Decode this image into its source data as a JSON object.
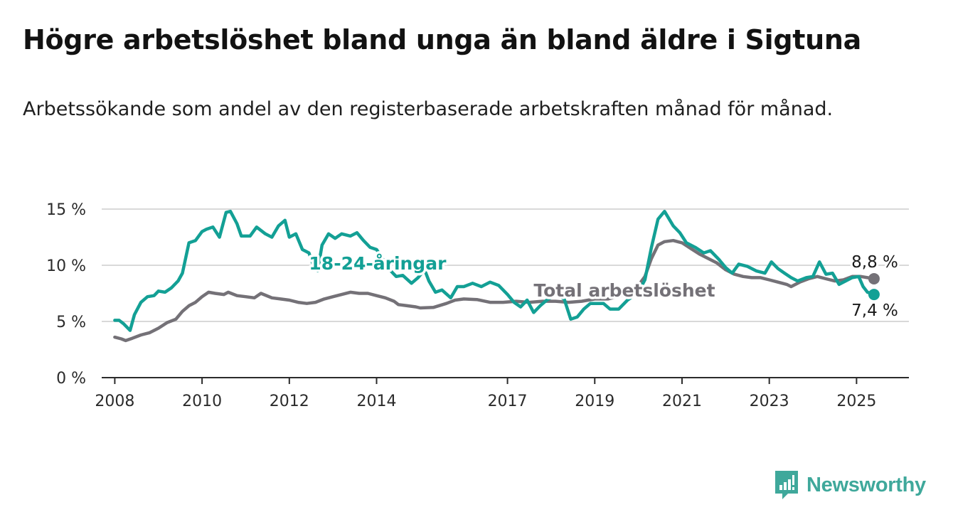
{
  "title": "Högre arbetslöshet bland unga än bland äldre i Sigtuna",
  "subtitle": "Arbetssökande som andel av den registerbaserade arbetskraften månad för månad.",
  "brand": {
    "name": "Newsworthy"
  },
  "colors": {
    "youth": "#13a095",
    "total": "#747177",
    "grid": "#d9d9d9",
    "axis": "#2b2b2b"
  },
  "chart_data": {
    "type": "line",
    "xlim": [
      2007.7,
      2026.2
    ],
    "ylim": [
      0,
      15
    ],
    "x_ticks": [
      {
        "value": 2008,
        "label": "2008"
      },
      {
        "value": 2010,
        "label": "2010"
      },
      {
        "value": 2012,
        "label": "2012"
      },
      {
        "value": 2014,
        "label": "2014"
      },
      {
        "value": 2017,
        "label": "2017"
      },
      {
        "value": 2019,
        "label": "2019"
      },
      {
        "value": 2021,
        "label": "2021"
      },
      {
        "value": 2023,
        "label": "2023"
      },
      {
        "value": 2025,
        "label": "2025"
      }
    ],
    "y_ticks": [
      {
        "value": 0,
        "label": "0 %"
      },
      {
        "value": 5,
        "label": "5 %"
      },
      {
        "value": 10,
        "label": "10 %"
      },
      {
        "value": 15,
        "label": "15 %"
      }
    ],
    "grid": true,
    "series": [
      {
        "name": "Total arbetslöshet",
        "color": "#747177",
        "end_label": "8,8 %",
        "points": [
          [
            2008.0,
            3.6
          ],
          [
            2008.15,
            3.45
          ],
          [
            2008.25,
            3.3
          ],
          [
            2008.4,
            3.5
          ],
          [
            2008.6,
            3.8
          ],
          [
            2008.8,
            4.0
          ],
          [
            2009.0,
            4.4
          ],
          [
            2009.2,
            4.9
          ],
          [
            2009.4,
            5.2
          ],
          [
            2009.55,
            5.9
          ],
          [
            2009.7,
            6.4
          ],
          [
            2009.85,
            6.7
          ],
          [
            2010.0,
            7.2
          ],
          [
            2010.15,
            7.6
          ],
          [
            2010.3,
            7.5
          ],
          [
            2010.5,
            7.4
          ],
          [
            2010.6,
            7.6
          ],
          [
            2010.8,
            7.3
          ],
          [
            2011.0,
            7.2
          ],
          [
            2011.2,
            7.1
          ],
          [
            2011.35,
            7.5
          ],
          [
            2011.6,
            7.1
          ],
          [
            2011.8,
            7.0
          ],
          [
            2012.0,
            6.9
          ],
          [
            2012.2,
            6.7
          ],
          [
            2012.4,
            6.6
          ],
          [
            2012.6,
            6.7
          ],
          [
            2012.8,
            7.0
          ],
          [
            2013.0,
            7.2
          ],
          [
            2013.2,
            7.4
          ],
          [
            2013.4,
            7.6
          ],
          [
            2013.6,
            7.5
          ],
          [
            2013.8,
            7.5
          ],
          [
            2014.0,
            7.3
          ],
          [
            2014.2,
            7.1
          ],
          [
            2014.4,
            6.8
          ],
          [
            2014.5,
            6.5
          ],
          [
            2014.7,
            6.4
          ],
          [
            2014.9,
            6.3
          ],
          [
            2015.0,
            6.2
          ],
          [
            2015.3,
            6.25
          ],
          [
            2015.6,
            6.6
          ],
          [
            2015.8,
            6.9
          ],
          [
            2016.0,
            7.0
          ],
          [
            2016.3,
            6.95
          ],
          [
            2016.6,
            6.7
          ],
          [
            2016.9,
            6.7
          ],
          [
            2017.2,
            6.8
          ],
          [
            2017.5,
            6.7
          ],
          [
            2017.8,
            6.8
          ],
          [
            2018.1,
            6.8
          ],
          [
            2018.4,
            6.7
          ],
          [
            2018.7,
            6.8
          ],
          [
            2019.0,
            7.0
          ],
          [
            2019.3,
            7.0
          ],
          [
            2019.6,
            7.3
          ],
          [
            2019.9,
            7.6
          ],
          [
            2020.0,
            8.2
          ],
          [
            2020.15,
            9.0
          ],
          [
            2020.3,
            10.6
          ],
          [
            2020.45,
            11.8
          ],
          [
            2020.6,
            12.1
          ],
          [
            2020.8,
            12.2
          ],
          [
            2021.0,
            12.0
          ],
          [
            2021.2,
            11.5
          ],
          [
            2021.4,
            11.0
          ],
          [
            2021.6,
            10.6
          ],
          [
            2021.8,
            10.2
          ],
          [
            2022.0,
            9.6
          ],
          [
            2022.2,
            9.2
          ],
          [
            2022.4,
            9.0
          ],
          [
            2022.6,
            8.9
          ],
          [
            2022.8,
            8.9
          ],
          [
            2023.0,
            8.7
          ],
          [
            2023.2,
            8.5
          ],
          [
            2023.4,
            8.3
          ],
          [
            2023.5,
            8.1
          ],
          [
            2023.7,
            8.5
          ],
          [
            2023.9,
            8.8
          ],
          [
            2024.1,
            9.0
          ],
          [
            2024.3,
            8.8
          ],
          [
            2024.5,
            8.6
          ],
          [
            2024.7,
            8.7
          ],
          [
            2024.9,
            9.0
          ],
          [
            2025.1,
            9.0
          ],
          [
            2025.25,
            8.9
          ],
          [
            2025.4,
            8.8
          ]
        ]
      },
      {
        "name": "18-24-åringar",
        "color": "#13a095",
        "end_label": "7,4 %",
        "points": [
          [
            2008.0,
            5.1
          ],
          [
            2008.1,
            5.1
          ],
          [
            2008.2,
            4.8
          ],
          [
            2008.35,
            4.2
          ],
          [
            2008.45,
            5.6
          ],
          [
            2008.6,
            6.7
          ],
          [
            2008.75,
            7.2
          ],
          [
            2008.9,
            7.3
          ],
          [
            2009.0,
            7.7
          ],
          [
            2009.15,
            7.6
          ],
          [
            2009.3,
            8.0
          ],
          [
            2009.45,
            8.6
          ],
          [
            2009.55,
            9.3
          ],
          [
            2009.7,
            12.0
          ],
          [
            2009.85,
            12.2
          ],
          [
            2010.0,
            13.0
          ],
          [
            2010.1,
            13.2
          ],
          [
            2010.25,
            13.4
          ],
          [
            2010.4,
            12.5
          ],
          [
            2010.55,
            14.7
          ],
          [
            2010.65,
            14.8
          ],
          [
            2010.8,
            13.7
          ],
          [
            2010.9,
            12.6
          ],
          [
            2011.1,
            12.6
          ],
          [
            2011.25,
            13.4
          ],
          [
            2011.45,
            12.8
          ],
          [
            2011.6,
            12.5
          ],
          [
            2011.75,
            13.5
          ],
          [
            2011.9,
            14.0
          ],
          [
            2012.0,
            12.5
          ],
          [
            2012.15,
            12.8
          ],
          [
            2012.3,
            11.4
          ],
          [
            2012.45,
            11.1
          ],
          [
            2012.55,
            10.0
          ],
          [
            2012.65,
            9.5
          ],
          [
            2012.75,
            11.8
          ],
          [
            2012.9,
            12.8
          ],
          [
            2013.05,
            12.4
          ],
          [
            2013.2,
            12.8
          ],
          [
            2013.4,
            12.6
          ],
          [
            2013.55,
            12.9
          ],
          [
            2013.7,
            12.2
          ],
          [
            2013.85,
            11.6
          ],
          [
            2014.0,
            11.4
          ],
          [
            2014.15,
            10.5
          ],
          [
            2014.3,
            9.6
          ],
          [
            2014.45,
            9.0
          ],
          [
            2014.6,
            9.1
          ],
          [
            2014.8,
            8.4
          ],
          [
            2014.95,
            8.9
          ],
          [
            2015.1,
            9.6
          ],
          [
            2015.2,
            8.6
          ],
          [
            2015.35,
            7.6
          ],
          [
            2015.5,
            7.8
          ],
          [
            2015.7,
            7.1
          ],
          [
            2015.85,
            8.1
          ],
          [
            2016.0,
            8.1
          ],
          [
            2016.2,
            8.4
          ],
          [
            2016.4,
            8.1
          ],
          [
            2016.6,
            8.5
          ],
          [
            2016.8,
            8.2
          ],
          [
            2017.0,
            7.4
          ],
          [
            2017.15,
            6.7
          ],
          [
            2017.3,
            6.3
          ],
          [
            2017.45,
            6.9
          ],
          [
            2017.6,
            5.8
          ],
          [
            2017.75,
            6.4
          ],
          [
            2017.9,
            6.9
          ],
          [
            2018.1,
            7.4
          ],
          [
            2018.3,
            7.0
          ],
          [
            2018.45,
            5.2
          ],
          [
            2018.6,
            5.4
          ],
          [
            2018.75,
            6.1
          ],
          [
            2018.9,
            6.6
          ],
          [
            2019.05,
            6.6
          ],
          [
            2019.2,
            6.6
          ],
          [
            2019.35,
            6.1
          ],
          [
            2019.55,
            6.1
          ],
          [
            2019.75,
            6.9
          ],
          [
            2020.0,
            7.6
          ],
          [
            2020.15,
            8.7
          ],
          [
            2020.3,
            11.6
          ],
          [
            2020.45,
            14.1
          ],
          [
            2020.6,
            14.8
          ],
          [
            2020.8,
            13.5
          ],
          [
            2020.95,
            12.9
          ],
          [
            2021.1,
            12.0
          ],
          [
            2021.3,
            11.6
          ],
          [
            2021.5,
            11.1
          ],
          [
            2021.65,
            11.3
          ],
          [
            2021.85,
            10.5
          ],
          [
            2022.0,
            9.8
          ],
          [
            2022.15,
            9.3
          ],
          [
            2022.3,
            10.1
          ],
          [
            2022.5,
            9.9
          ],
          [
            2022.7,
            9.5
          ],
          [
            2022.9,
            9.3
          ],
          [
            2023.05,
            10.3
          ],
          [
            2023.2,
            9.7
          ],
          [
            2023.35,
            9.3
          ],
          [
            2023.5,
            8.9
          ],
          [
            2023.65,
            8.6
          ],
          [
            2023.85,
            8.9
          ],
          [
            2024.0,
            9.0
          ],
          [
            2024.15,
            10.3
          ],
          [
            2024.3,
            9.2
          ],
          [
            2024.45,
            9.3
          ],
          [
            2024.6,
            8.3
          ],
          [
            2024.75,
            8.6
          ],
          [
            2024.9,
            8.9
          ],
          [
            2025.05,
            9.0
          ],
          [
            2025.15,
            8.1
          ],
          [
            2025.25,
            7.6
          ],
          [
            2025.4,
            7.4
          ]
        ]
      }
    ],
    "annotations": [
      {
        "text": "18-24-åringar",
        "series": "18-24-åringar",
        "x": 2012.45,
        "y": 10.2
      },
      {
        "text": "Total arbetslöshet",
        "series": "Total arbetslöshet",
        "x": 2017.6,
        "y": 7.8
      }
    ]
  }
}
